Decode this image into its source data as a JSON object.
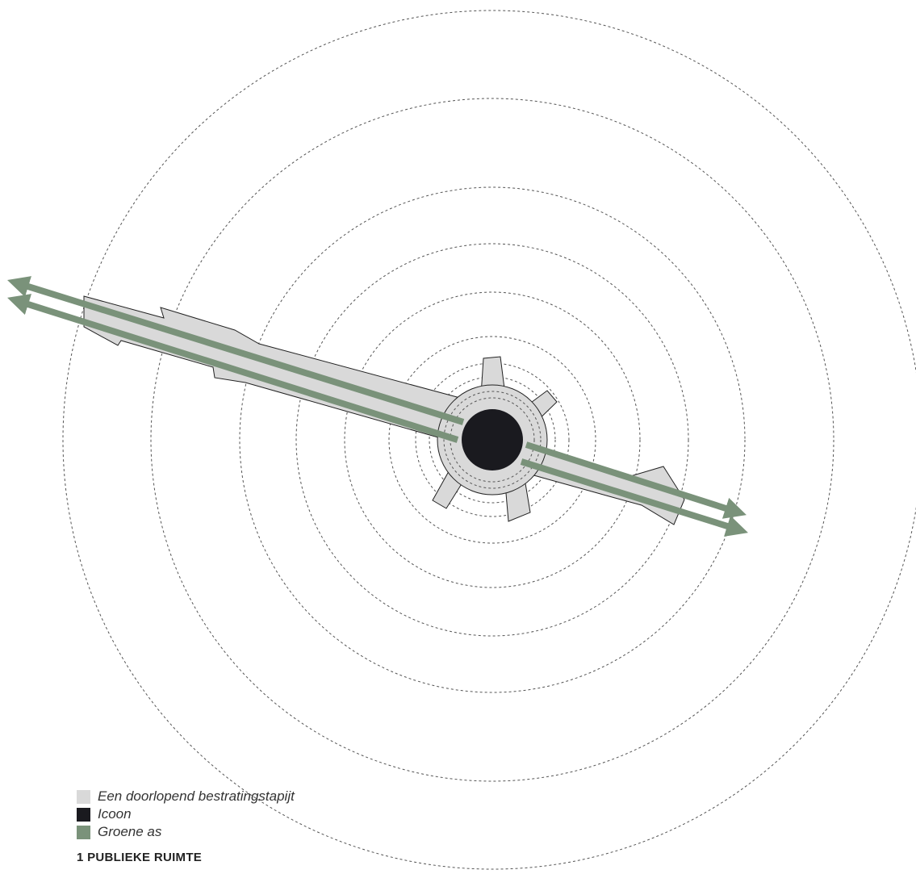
{
  "colors": {
    "paving": "#d9d9d9",
    "icon": "#1a1a1f",
    "green_axis": "#7a927a",
    "rings": "#555555"
  },
  "legend": [
    {
      "label": "Een doorlopend bestratingstapijt",
      "swatch": "paving"
    },
    {
      "label": "Icoon",
      "swatch": "icon"
    },
    {
      "label": "Groene as",
      "swatch": "green_axis"
    }
  ],
  "caption": "1 PUBLIEKE RUIMTE"
}
